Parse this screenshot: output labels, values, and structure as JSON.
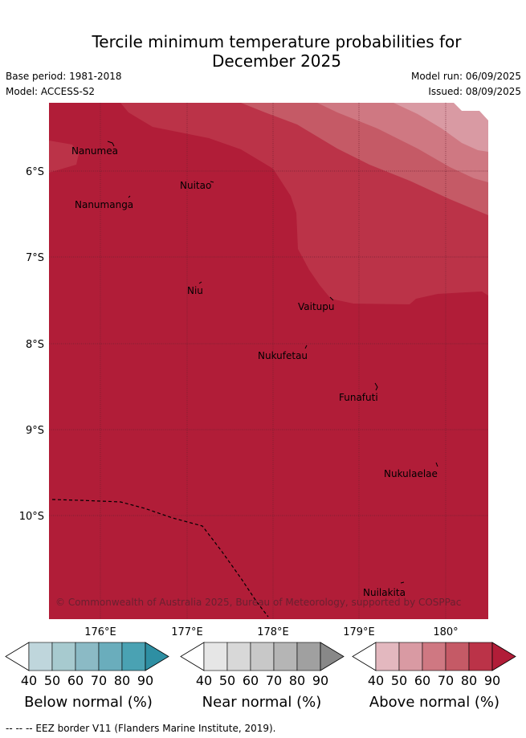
{
  "title_line1": "Tercile minimum temperature probabilities for",
  "title_line2": "December 2025",
  "base_period": "Base period: 1981-2018",
  "model": "Model: ACCESS-S2",
  "model_run": "Model run: 06/09/2025",
  "issued": "Issued: 08/09/2025",
  "copyright": "© Commonwealth of Australia 2025, Bureau of Meteorology, supported by COSPPac",
  "lat_labels": [
    "6°S",
    "7°S",
    "8°S",
    "9°S",
    "10°S"
  ],
  "lon_labels": [
    "176°E",
    "177°E",
    "178°E",
    "179°E",
    "180°"
  ],
  "places": [
    "Nanumea",
    "Nuitao",
    "Nanumanga",
    "Niu",
    "Vaitupu",
    "Nukufetau",
    "Funafuti",
    "Nukulaelae",
    "Nuilakita"
  ],
  "legend": [
    {
      "title": "Below normal (%)",
      "ticks": [
        "40",
        "50",
        "60",
        "70",
        "80",
        "90"
      ],
      "colors": [
        "#bfd6dc",
        "#a7cacf",
        "#8bbac5",
        "#6aadbc",
        "#4aa2b3",
        "#2e8fa3"
      ]
    },
    {
      "title": "Near normal (%)",
      "ticks": [
        "40",
        "50",
        "60",
        "70",
        "80",
        "90"
      ],
      "colors": [
        "#e6e6e6",
        "#d8d8d8",
        "#c8c8c8",
        "#b5b5b5",
        "#a0a0a0",
        "#888888"
      ]
    },
    {
      "title": "Above normal (%)",
      "ticks": [
        "40",
        "50",
        "60",
        "70",
        "80",
        "90"
      ],
      "colors": [
        "#e3b8bf",
        "#d99aa3",
        "#cf7882",
        "#c55a66",
        "#bb3348",
        "#b11d38"
      ]
    }
  ],
  "footer": "--  --  -- EEZ border V11 (Flanders Marine Institute, 2019)."
}
